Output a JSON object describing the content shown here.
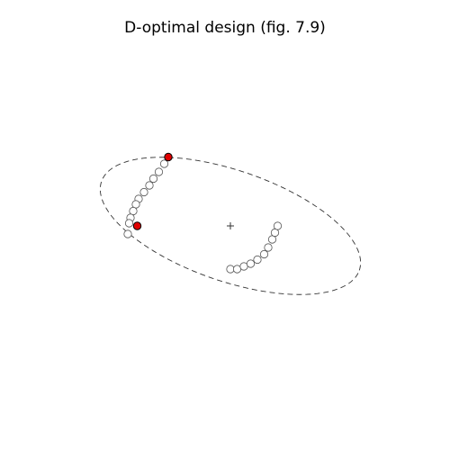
{
  "chart_data": {
    "type": "scatter",
    "title": "D-optimal design (fig. 7.9)",
    "xlabel": "",
    "ylabel": "",
    "axes_visible": false,
    "grid": false,
    "xlim": [
      -11,
      11
    ],
    "ylim": [
      -8,
      8
    ],
    "center": {
      "x": 0,
      "y": 0,
      "marker": "plus"
    },
    "ellipse": {
      "center": [
        0,
        0
      ],
      "semi_major": 10.1,
      "semi_minor": 4.1,
      "angle_deg": -19,
      "line_style": "dashed"
    },
    "series": [
      {
        "role": "candidate points",
        "marker": "open-circle",
        "color": "#ffffff",
        "stroke": "#555555",
        "x": [
          -4.9,
          -5.3,
          -5.7,
          -6.0,
          -6.4,
          -6.8,
          -7.0,
          -7.2,
          -7.4,
          -7.5,
          -7.6,
          0.0,
          0.5,
          1.0,
          1.5,
          2.0,
          2.5,
          2.8,
          3.1,
          3.3,
          3.5
        ],
        "y": [
          4.6,
          4.0,
          3.5,
          3.0,
          2.5,
          2.0,
          1.6,
          1.1,
          0.6,
          0.2,
          -0.6,
          -3.2,
          -3.2,
          -3.0,
          -2.8,
          -2.5,
          -2.1,
          -1.6,
          -1.0,
          -0.5,
          0.0
        ]
      },
      {
        "role": "selected design points",
        "marker": "filled-circle",
        "color": "#e00000",
        "stroke": "#000000",
        "x": [
          -4.6,
          -6.9
        ],
        "y": [
          5.1,
          0.0
        ]
      }
    ]
  }
}
